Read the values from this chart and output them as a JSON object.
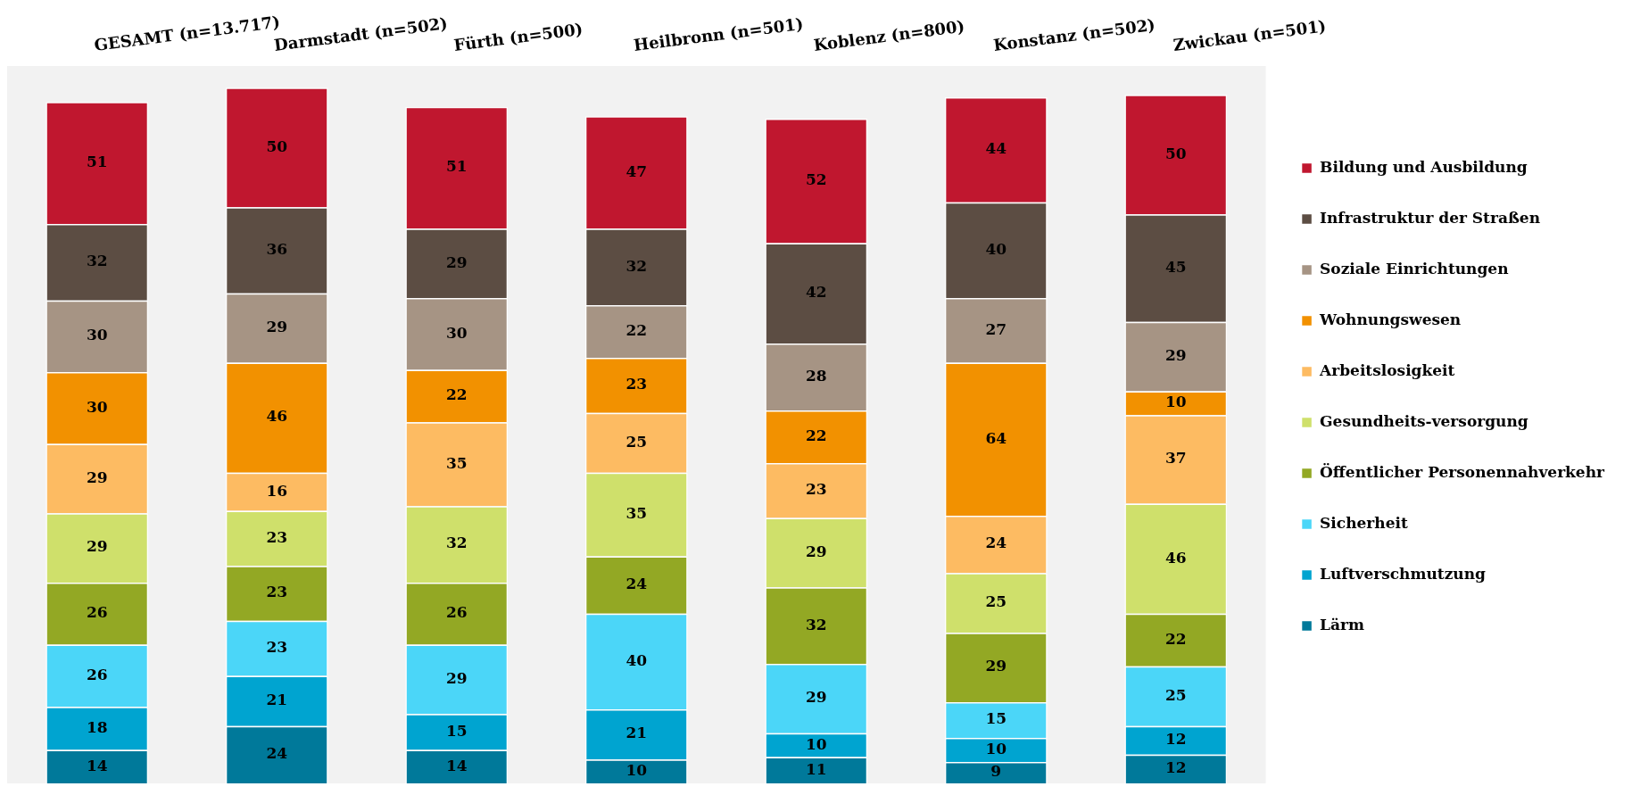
{
  "chart_data": {
    "type": "bar",
    "stacked": true,
    "ylim": [
      0,
      300
    ],
    "data_labels": true,
    "legend": "right",
    "categories": [
      "GESAMT (n=13.717)",
      "Darmstadt (n=502)",
      "Fürth (n=500)",
      "Heilbronn (n=501)",
      "Koblenz (n=800)",
      "Konstanz (n=502)",
      "Zwickau (n=501)"
    ],
    "series": [
      {
        "name": "Lärm",
        "color": "#00799a",
        "values": [
          14,
          24,
          14,
          10,
          11,
          9,
          12
        ]
      },
      {
        "name": "Luftverschmutzung",
        "color": "#00a4d0",
        "values": [
          18,
          21,
          15,
          21,
          10,
          10,
          12
        ]
      },
      {
        "name": "Sicherheit",
        "color": "#4bd6f8",
        "values": [
          26,
          23,
          29,
          40,
          29,
          15,
          25
        ]
      },
      {
        "name": "Öffentlicher Personennahverkehr",
        "color": "#93a824",
        "values": [
          26,
          23,
          26,
          24,
          32,
          29,
          22
        ]
      },
      {
        "name": "Gesundheits-versorgung",
        "color": "#cfe06b",
        "values": [
          29,
          23,
          32,
          35,
          29,
          25,
          46
        ]
      },
      {
        "name": "Arbeitslosigkeit",
        "color": "#fdbb62",
        "values": [
          29,
          16,
          35,
          25,
          23,
          24,
          37
        ]
      },
      {
        "name": "Wohnungswesen",
        "color": "#f29100",
        "values": [
          30,
          46,
          22,
          23,
          22,
          64,
          10
        ]
      },
      {
        "name": "Soziale Einrichtungen",
        "color": "#a69484",
        "values": [
          30,
          29,
          30,
          22,
          28,
          27,
          29
        ]
      },
      {
        "name": "Infrastruktur der Straßen",
        "color": "#5c4d43",
        "values": [
          32,
          36,
          29,
          32,
          42,
          40,
          45
        ]
      },
      {
        "name": "Bildung und Ausbildung",
        "color": "#c0172f",
        "values": [
          51,
          50,
          51,
          47,
          52,
          44,
          50
        ]
      }
    ]
  }
}
